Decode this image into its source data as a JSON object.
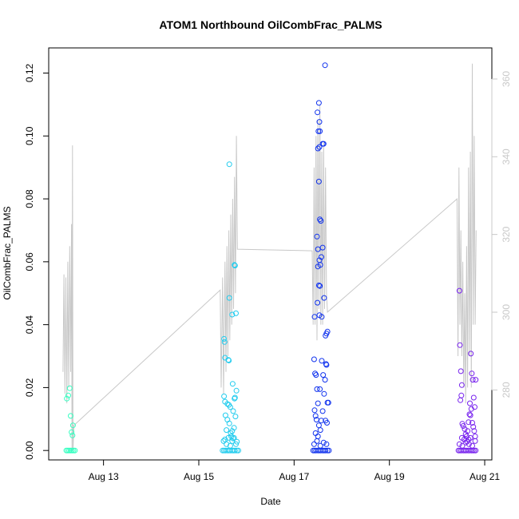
{
  "chart_data": {
    "type": "scatter",
    "title": "ATOM1 Northbound OilCombFrac_PALMS",
    "xlabel": "Date",
    "ylabel": "OilCombFrac_PALMS",
    "x_ticks": [
      "Aug 13",
      "Aug 15",
      "Aug 17",
      "Aug 19",
      "Aug 21"
    ],
    "x_tick_days": [
      13,
      15,
      17,
      19,
      21
    ],
    "xlim_days": [
      11.85,
      21.15
    ],
    "ylim": [
      -0.003,
      0.128
    ],
    "y_ticks": [
      0.0,
      0.02,
      0.04,
      0.06,
      0.08,
      0.1,
      0.12
    ],
    "y_tick_labels": [
      "0.00",
      "0.02",
      "0.04",
      "0.06",
      "0.08",
      "0.10",
      "0.12"
    ],
    "y2lim": [
      262,
      368
    ],
    "y2_ticks": [
      280,
      300,
      320,
      340,
      360
    ],
    "y2_tick_labels": [
      "280",
      "300",
      "320",
      "340",
      "360"
    ],
    "colors": {
      "axis": "#000000",
      "altitude_line": "#c8c8c8",
      "right_axis": "#c8c8c8",
      "flight_colors": [
        "#33ffc0",
        "#22ccee",
        "#1133ee",
        "#7722ee"
      ]
    },
    "series": [
      {
        "flight": "Aug 12",
        "color": "#33ffc0",
        "points": [
          [
            12.22,
            0.0
          ],
          [
            12.25,
            0.0
          ],
          [
            12.28,
            0.0
          ],
          [
            12.31,
            0.0
          ],
          [
            12.34,
            0.0
          ],
          [
            12.37,
            0.0
          ],
          [
            12.4,
            0.0
          ],
          [
            12.23,
            0.0165
          ],
          [
            12.26,
            0.0175
          ],
          [
            12.29,
            0.0198
          ],
          [
            12.31,
            0.011
          ],
          [
            12.33,
            0.0058
          ],
          [
            12.35,
            0.0048
          ],
          [
            12.36,
            0.008
          ]
        ]
      },
      {
        "flight": "Aug 15",
        "color": "#22ccee",
        "points": [
          [
            15.5,
            0.0
          ],
          [
            15.53,
            0.0
          ],
          [
            15.56,
            0.0
          ],
          [
            15.6,
            0.0
          ],
          [
            15.63,
            0.0
          ],
          [
            15.66,
            0.0
          ],
          [
            15.7,
            0.0
          ],
          [
            15.73,
            0.0
          ],
          [
            15.76,
            0.0
          ],
          [
            15.8,
            0.0
          ],
          [
            15.83,
            0.0
          ],
          [
            15.52,
            0.003
          ],
          [
            15.55,
            0.0035
          ],
          [
            15.58,
            0.002
          ],
          [
            15.62,
            0.004
          ],
          [
            15.66,
            0.0015
          ],
          [
            15.7,
            0.003
          ],
          [
            15.74,
            0.004
          ],
          [
            15.78,
            0.002
          ],
          [
            15.53,
            0.0355
          ],
          [
            15.54,
            0.0345
          ],
          [
            15.55,
            0.0295
          ],
          [
            15.53,
            0.0172
          ],
          [
            15.55,
            0.0155
          ],
          [
            15.6,
            0.0148
          ],
          [
            15.63,
            0.0145
          ],
          [
            15.66,
            0.0138
          ],
          [
            15.56,
            0.0112
          ],
          [
            15.6,
            0.0098
          ],
          [
            15.64,
            0.0086
          ],
          [
            15.58,
            0.0065
          ],
          [
            15.67,
            0.0055
          ],
          [
            15.7,
            0.0062
          ],
          [
            15.74,
            0.0072
          ],
          [
            15.77,
            0.0108
          ],
          [
            15.72,
            0.0125
          ],
          [
            15.75,
            0.0165
          ],
          [
            15.79,
            0.019
          ],
          [
            15.71,
            0.0212
          ],
          [
            15.76,
            0.0168
          ],
          [
            15.68,
            0.0045
          ],
          [
            15.72,
            0.0038
          ],
          [
            15.62,
            0.0288
          ],
          [
            15.63,
            0.0286
          ],
          [
            15.64,
            0.091
          ],
          [
            15.64,
            0.0485
          ],
          [
            15.7,
            0.0432
          ],
          [
            15.78,
            0.0436
          ],
          [
            15.75,
            0.059
          ],
          [
            15.76,
            0.0588
          ],
          [
            15.8,
            0.0028
          ]
        ]
      },
      {
        "flight": "Aug 17",
        "color": "#1133ee",
        "points": [
          [
            17.4,
            0.0
          ],
          [
            17.43,
            0.0
          ],
          [
            17.46,
            0.0
          ],
          [
            17.5,
            0.0
          ],
          [
            17.53,
            0.0
          ],
          [
            17.56,
            0.0
          ],
          [
            17.6,
            0.0
          ],
          [
            17.63,
            0.0
          ],
          [
            17.66,
            0.0
          ],
          [
            17.7,
            0.0
          ],
          [
            17.73,
            0.0
          ],
          [
            17.42,
            0.002
          ],
          [
            17.48,
            0.003
          ],
          [
            17.55,
            0.0015
          ],
          [
            17.62,
            0.0025
          ],
          [
            17.68,
            0.002
          ],
          [
            17.42,
            0.029
          ],
          [
            17.44,
            0.0245
          ],
          [
            17.46,
            0.024
          ],
          [
            17.48,
            0.0195
          ],
          [
            17.43,
            0.0128
          ],
          [
            17.45,
            0.011
          ],
          [
            17.47,
            0.0098
          ],
          [
            17.5,
            0.015
          ],
          [
            17.52,
            0.008
          ],
          [
            17.55,
            0.0065
          ],
          [
            17.57,
            0.0095
          ],
          [
            17.6,
            0.0125
          ],
          [
            17.63,
            0.018
          ],
          [
            17.65,
            0.0225
          ],
          [
            17.67,
            0.0275
          ],
          [
            17.68,
            0.0272
          ],
          [
            17.7,
            0.0152
          ],
          [
            17.72,
            0.0152
          ],
          [
            17.66,
            0.0095
          ],
          [
            17.69,
            0.0088
          ],
          [
            17.58,
            0.0285
          ],
          [
            17.61,
            0.024
          ],
          [
            17.54,
            0.0195
          ],
          [
            17.5,
            0.0045
          ],
          [
            17.45,
            0.0055
          ],
          [
            17.43,
            0.0425
          ],
          [
            17.49,
            0.047
          ],
          [
            17.53,
            0.043
          ],
          [
            17.58,
            0.0425
          ],
          [
            17.63,
            0.0485
          ],
          [
            17.66,
            0.0365
          ],
          [
            17.68,
            0.0372
          ],
          [
            17.7,
            0.0378
          ],
          [
            17.52,
            0.0525
          ],
          [
            17.54,
            0.0523
          ],
          [
            17.5,
            0.0585
          ],
          [
            17.53,
            0.0605
          ],
          [
            17.55,
            0.059
          ],
          [
            17.57,
            0.0615
          ],
          [
            17.5,
            0.064
          ],
          [
            17.6,
            0.0645
          ],
          [
            17.48,
            0.068
          ],
          [
            17.54,
            0.0735
          ],
          [
            17.56,
            0.073
          ],
          [
            17.52,
            0.0855
          ],
          [
            17.5,
            0.096
          ],
          [
            17.53,
            0.0965
          ],
          [
            17.6,
            0.0975
          ],
          [
            17.62,
            0.0975
          ],
          [
            17.51,
            0.1015
          ],
          [
            17.54,
            0.1015
          ],
          [
            17.53,
            0.1045
          ],
          [
            17.49,
            0.1075
          ],
          [
            17.52,
            0.1105
          ],
          [
            17.65,
            0.1225
          ]
        ]
      },
      {
        "flight": "Aug 20",
        "color": "#7722ee",
        "points": [
          [
            20.45,
            0.0
          ],
          [
            20.48,
            0.0
          ],
          [
            20.51,
            0.0
          ],
          [
            20.55,
            0.0
          ],
          [
            20.58,
            0.0
          ],
          [
            20.61,
            0.0
          ],
          [
            20.65,
            0.0
          ],
          [
            20.68,
            0.0
          ],
          [
            20.72,
            0.0
          ],
          [
            20.75,
            0.0
          ],
          [
            20.78,
            0.0
          ],
          [
            20.81,
            0.0
          ],
          [
            20.47,
            0.002
          ],
          [
            20.53,
            0.0015
          ],
          [
            20.6,
            0.0025
          ],
          [
            20.67,
            0.002
          ],
          [
            20.74,
            0.0015
          ],
          [
            20.47,
            0.0508
          ],
          [
            20.48,
            0.0335
          ],
          [
            20.5,
            0.0252
          ],
          [
            20.52,
            0.0208
          ],
          [
            20.51,
            0.0175
          ],
          [
            20.49,
            0.016
          ],
          [
            20.53,
            0.0085
          ],
          [
            20.55,
            0.0078
          ],
          [
            20.58,
            0.0068
          ],
          [
            20.6,
            0.0052
          ],
          [
            20.62,
            0.0045
          ],
          [
            20.64,
            0.0062
          ],
          [
            20.66,
            0.009
          ],
          [
            20.68,
            0.0115
          ],
          [
            20.7,
            0.0112
          ],
          [
            20.72,
            0.0132
          ],
          [
            20.74,
            0.0088
          ],
          [
            20.76,
            0.0075
          ],
          [
            20.78,
            0.0062
          ],
          [
            20.8,
            0.0045
          ],
          [
            20.71,
            0.0308
          ],
          [
            20.73,
            0.0245
          ],
          [
            20.75,
            0.0225
          ],
          [
            20.77,
            0.0168
          ],
          [
            20.79,
            0.0138
          ],
          [
            20.81,
            0.0225
          ],
          [
            20.69,
            0.015
          ],
          [
            20.63,
            0.0028
          ],
          [
            20.57,
            0.0035
          ],
          [
            20.52,
            0.004
          ],
          [
            20.66,
            0.0035
          ],
          [
            20.7,
            0.004
          ],
          [
            20.8,
            0.003
          ]
        ]
      }
    ],
    "altitude_line": {
      "segments": [
        [
          [
            12.15,
            0.025
          ],
          [
            12.17,
            0.056
          ],
          [
            12.19,
            0.018
          ],
          [
            12.21,
            0.055
          ],
          [
            12.23,
            0.015
          ],
          [
            12.25,
            0.06
          ],
          [
            12.27,
            0.02
          ],
          [
            12.29,
            0.065
          ],
          [
            12.31,
            0.025
          ],
          [
            12.33,
            0.072
          ],
          [
            12.34,
            0.0
          ],
          [
            12.35,
            0.097
          ],
          [
            12.36,
            0.0
          ],
          [
            12.38,
            0.008
          ],
          [
            15.45,
            0.051
          ],
          [
            15.47,
            0.02
          ],
          [
            15.5,
            0.055
          ],
          [
            15.52,
            0.018
          ],
          [
            15.55,
            0.06
          ],
          [
            15.57,
            0.025
          ],
          [
            15.59,
            0.065
          ],
          [
            15.61,
            0.03
          ],
          [
            15.63,
            0.07
          ],
          [
            15.65,
            0.035
          ],
          [
            15.67,
            0.075
          ],
          [
            15.69,
            0.04
          ],
          [
            15.71,
            0.08
          ],
          [
            15.73,
            0.045
          ],
          [
            15.75,
            0.087
          ],
          [
            15.77,
            0.05
          ],
          [
            15.79,
            0.1
          ],
          [
            15.81,
            0.064
          ],
          [
            17.38,
            0.0635
          ],
          [
            17.4,
            0.04
          ],
          [
            17.42,
            0.09
          ],
          [
            17.44,
            0.04
          ],
          [
            17.46,
            0.1
          ],
          [
            17.48,
            0.035
          ],
          [
            17.5,
            0.105
          ],
          [
            17.52,
            0.045
          ],
          [
            17.54,
            0.11
          ],
          [
            17.56,
            0.04
          ],
          [
            17.58,
            0.095
          ],
          [
            17.6,
            0.04
          ],
          [
            17.62,
            0.098
          ],
          [
            17.64,
            0.045
          ],
          [
            17.66,
            0.09
          ],
          [
            17.68,
            0.05
          ],
          [
            17.7,
            0.044
          ],
          [
            20.42,
            0.08
          ],
          [
            20.44,
            0.03
          ],
          [
            20.46,
            0.09
          ],
          [
            20.48,
            0.04
          ],
          [
            20.5,
            0.07
          ],
          [
            20.52,
            0.03
          ],
          [
            20.54,
            0.06
          ],
          [
            20.56,
            0.02
          ],
          [
            20.58,
            0.05
          ],
          [
            20.6,
            0.015
          ],
          [
            20.62,
            0.065
          ],
          [
            20.64,
            0.02
          ],
          [
            20.66,
            0.09
          ],
          [
            20.68,
            0.03
          ],
          [
            20.7,
            0.095
          ],
          [
            20.72,
            0.02
          ],
          [
            20.74,
            0.123
          ],
          [
            20.76,
            0.04
          ],
          [
            20.78,
            0.1
          ],
          [
            20.8,
            0.04
          ],
          [
            20.82,
            0.07
          ]
        ]
      ]
    }
  }
}
